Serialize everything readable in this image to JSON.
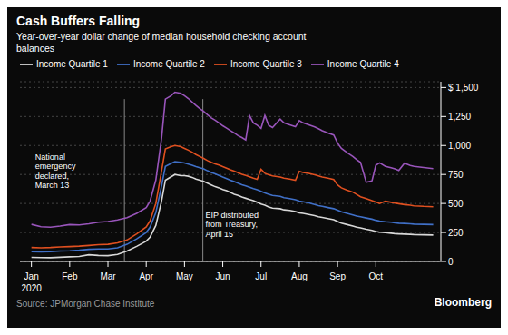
{
  "chart_data": {
    "type": "line",
    "title": "Cash Buffers Falling",
    "subtitle": "Year-over-year dollar change of median household checking account\nbalances",
    "source": "Source:  JPMorgan Chase Institute",
    "credit": "Bloomberg",
    "background_color": "#0a0a0a",
    "text_color": "#ffffff",
    "year_label": "2020",
    "grid": true,
    "xlim": [
      -0.3,
      10.7
    ],
    "xticks": [
      {
        "value": 0,
        "label": "Jan"
      },
      {
        "value": 1,
        "label": "Feb"
      },
      {
        "value": 2,
        "label": "Mar"
      },
      {
        "value": 3,
        "label": "Apr"
      },
      {
        "value": 4,
        "label": "May"
      },
      {
        "value": 5,
        "label": "Jun"
      },
      {
        "value": 6,
        "label": "Jul"
      },
      {
        "value": 7,
        "label": "Aug"
      },
      {
        "value": 8,
        "label": "Sep"
      },
      {
        "value": 9,
        "label": "Oct"
      }
    ],
    "ylim": [
      0,
      1550
    ],
    "yticks": [
      0,
      250,
      500,
      750,
      {
        "value": 1000,
        "label": "1,000"
      },
      {
        "value": 1250,
        "label": "1,250"
      },
      {
        "value": 1500,
        "label": "$ 1,500"
      }
    ],
    "annotations": [
      {
        "text": "National\nemergency\ndeclared,\nMarch 13",
        "x": 0.1,
        "y": 940
      },
      {
        "text": "EIP distributed\nfrom Treasury,\nApril 15",
        "x": 4.55,
        "y": 440
      }
    ],
    "vlines": [
      {
        "x": 2.43,
        "y": [
          0,
          1400
        ]
      },
      {
        "x": 4.48,
        "y": [
          0,
          1400
        ]
      }
    ],
    "x": [
      0,
      0.25,
      0.5,
      0.75,
      1,
      1.25,
      1.5,
      1.75,
      2,
      2.25,
      2.5,
      2.75,
      3,
      3.1,
      3.25,
      3.4,
      3.5,
      3.65,
      3.75,
      3.9,
      4,
      4.1,
      4.2,
      4.3,
      4.4,
      4.5,
      4.6,
      4.7,
      4.8,
      4.9,
      5,
      5.1,
      5.2,
      5.3,
      5.4,
      5.5,
      5.6,
      5.7,
      5.8,
      5.9,
      6,
      6.1,
      6.2,
      6.3,
      6.5,
      6.6,
      6.75,
      6.9,
      7,
      7.1,
      7.25,
      7.4,
      7.5,
      7.6,
      7.75,
      7.9,
      8,
      8.1,
      8.25,
      8.4,
      8.5,
      8.6,
      8.75,
      8.9,
      9,
      9.1,
      9.25,
      9.4,
      9.5,
      9.6,
      9.75,
      9.9,
      10,
      10.25,
      10.5
    ],
    "series": [
      {
        "name": "Income Quartile 1",
        "color": "#d8d8d8",
        "values": [
          35,
          33,
          32,
          36,
          40,
          43,
          58,
          52,
          50,
          60,
          90,
          130,
          175,
          210,
          310,
          520,
          700,
          730,
          750,
          740,
          740,
          735,
          725,
          710,
          700,
          690,
          675,
          660,
          645,
          635,
          620,
          610,
          595,
          580,
          570,
          555,
          545,
          535,
          525,
          510,
          495,
          485,
          470,
          460,
          455,
          445,
          440,
          430,
          420,
          415,
          405,
          395,
          385,
          380,
          370,
          360,
          345,
          330,
          318,
          305,
          295,
          290,
          278,
          268,
          258,
          252,
          248,
          244,
          240,
          238,
          236,
          234,
          232,
          230,
          228
        ]
      },
      {
        "name": "Income Quartile 2",
        "color": "#4070c8",
        "values": [
          85,
          82,
          85,
          90,
          92,
          97,
          105,
          108,
          108,
          118,
          148,
          195,
          250,
          295,
          420,
          650,
          820,
          845,
          860,
          855,
          850,
          840,
          830,
          818,
          808,
          798,
          782,
          768,
          755,
          742,
          728,
          715,
          700,
          688,
          675,
          662,
          652,
          640,
          628,
          618,
          605,
          592,
          580,
          570,
          562,
          550,
          542,
          532,
          520,
          515,
          505,
          492,
          482,
          475,
          465,
          455,
          442,
          428,
          415,
          402,
          392,
          385,
          375,
          365,
          355,
          348,
          342,
          338,
          334,
          330,
          328,
          325,
          322,
          320,
          318
        ]
      },
      {
        "name": "Income Quartile 3",
        "color": "#e05020",
        "values": [
          120,
          117,
          120,
          125,
          128,
          132,
          138,
          145,
          148,
          160,
          185,
          238,
          298,
          350,
          500,
          780,
          970,
          990,
          1000,
          990,
          975,
          960,
          942,
          922,
          905,
          888,
          870,
          855,
          842,
          832,
          818,
          805,
          790,
          778,
          765,
          752,
          742,
          730,
          718,
          708,
          795,
          760,
          748,
          738,
          728,
          718,
          710,
          700,
          778,
          768,
          760,
          748,
          738,
          728,
          718,
          706,
          660,
          635,
          615,
          598,
          578,
          558,
          542,
          524,
          512,
          500,
          520,
          510,
          504,
          498,
          490,
          485,
          480,
          475,
          472
        ]
      },
      {
        "name": "Income Quartile 4",
        "color": "#9955bb",
        "values": [
          320,
          300,
          295,
          305,
          318,
          315,
          325,
          338,
          345,
          358,
          378,
          415,
          465,
          520,
          700,
          1060,
          1400,
          1430,
          1460,
          1450,
          1430,
          1405,
          1375,
          1345,
          1318,
          1295,
          1265,
          1238,
          1218,
          1195,
          1170,
          1150,
          1128,
          1108,
          1085,
          1068,
          1048,
          1258,
          1195,
          1175,
          1148,
          1258,
          1175,
          1155,
          1228,
          1195,
          1178,
          1162,
          1215,
          1195,
          1178,
          1160,
          1145,
          1128,
          1108,
          1090,
          1020,
          975,
          938,
          905,
          878,
          855,
          682,
          695,
          830,
          850,
          820,
          808,
          798,
          785,
          848,
          828,
          820,
          810,
          800
        ]
      }
    ]
  }
}
